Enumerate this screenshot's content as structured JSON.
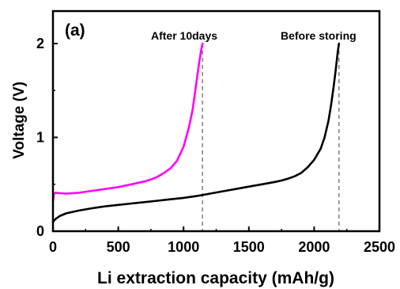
{
  "chart_data": {
    "type": "line",
    "panel_label": "(a)",
    "xlabel": "Li extraction capacity (mAh/g)",
    "ylabel": "Voltage (V)",
    "xlim": [
      0,
      2500
    ],
    "ylim": [
      0,
      2.05
    ],
    "x_ticks": [
      0,
      500,
      1000,
      1500,
      2000,
      2500
    ],
    "y_ticks": [
      0,
      1,
      2
    ],
    "grid": false,
    "legend": "none",
    "series": [
      {
        "label": "Before storing",
        "color": "#000000",
        "x": [
          0,
          20,
          50,
          100,
          200,
          300,
          400,
          500,
          600,
          700,
          800,
          900,
          1000,
          1100,
          1200,
          1300,
          1400,
          1500,
          1600,
          1700,
          1750,
          1800,
          1850,
          1900,
          1950,
          2000,
          2050,
          2080,
          2110,
          2130,
          2150,
          2165,
          2180,
          2190
        ],
        "y": [
          0.1,
          0.13,
          0.16,
          0.19,
          0.22,
          0.245,
          0.265,
          0.28,
          0.295,
          0.31,
          0.325,
          0.34,
          0.355,
          0.375,
          0.4,
          0.425,
          0.45,
          0.475,
          0.5,
          0.525,
          0.54,
          0.56,
          0.585,
          0.62,
          0.68,
          0.76,
          0.88,
          1.0,
          1.18,
          1.35,
          1.55,
          1.72,
          1.9,
          2.0
        ]
      },
      {
        "label": "After 10days",
        "color": "#ff00ff",
        "x": [
          0,
          8,
          20,
          50,
          100,
          200,
          300,
          400,
          500,
          600,
          700,
          750,
          800,
          850,
          900,
          950,
          1000,
          1040,
          1070,
          1090,
          1105,
          1120,
          1135,
          1145
        ],
        "y": [
          0.32,
          0.4,
          0.41,
          0.405,
          0.4,
          0.41,
          0.43,
          0.45,
          0.47,
          0.5,
          0.53,
          0.55,
          0.58,
          0.62,
          0.67,
          0.75,
          0.9,
          1.1,
          1.3,
          1.5,
          1.65,
          1.8,
          1.93,
          2.0
        ]
      }
    ],
    "reference_lines": [
      {
        "x": 1145,
        "style": "dashed",
        "color": "#808080"
      },
      {
        "x": 2190,
        "style": "dashed",
        "color": "#808080"
      }
    ]
  }
}
